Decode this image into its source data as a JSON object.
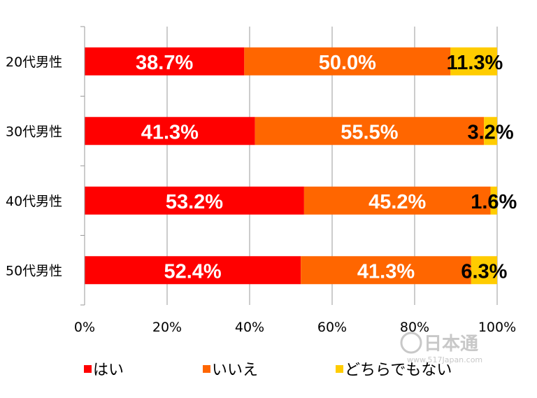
{
  "chart_data": {
    "type": "bar",
    "orientation": "horizontal",
    "stacked": "percent",
    "categories": [
      "20代男性",
      "30代男性",
      "40代男性",
      "50代男性"
    ],
    "series": [
      {
        "name": "はい",
        "color": "#ff0000",
        "label_color": "#ffffff",
        "values": [
          38.7,
          41.3,
          53.2,
          52.4
        ],
        "labels": [
          "38.7%",
          "41.3%",
          "53.2%",
          "52.4%"
        ]
      },
      {
        "name": "いいえ",
        "color": "#ff6600",
        "label_color": "#ffffff",
        "values": [
          50.0,
          55.5,
          45.2,
          41.3
        ],
        "labels": [
          "50.0%",
          "55.5%",
          "45.2%",
          "41.3%"
        ]
      },
      {
        "name": "どちらでもない",
        "color": "#ffcc00",
        "label_color": "#000000",
        "values": [
          11.3,
          3.2,
          1.6,
          6.3
        ],
        "labels": [
          "11.3%",
          "3.2%",
          "1.6%",
          "6.3%"
        ]
      }
    ],
    "xlim": [
      0,
      100
    ],
    "xticks": [
      0,
      20,
      40,
      60,
      80,
      100
    ],
    "xtick_labels": [
      "0%",
      "20%",
      "40%",
      "60%",
      "80%",
      "100%"
    ],
    "grid": true,
    "legend_position": "bottom",
    "title": "",
    "xlabel": "",
    "ylabel": ""
  },
  "watermark": {
    "text": "日本通",
    "subtext": "www.517Japan.com"
  }
}
